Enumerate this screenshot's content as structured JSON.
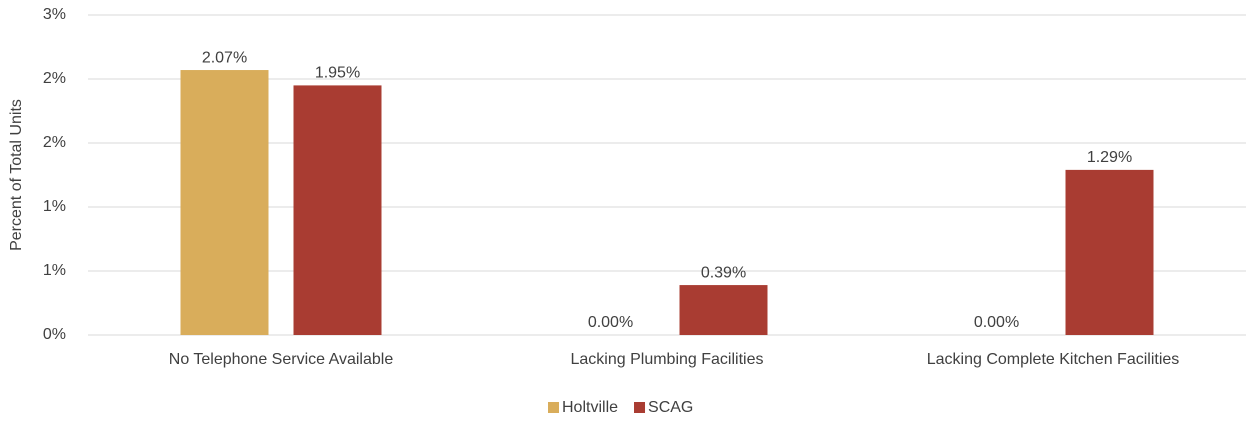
{
  "chart_data": {
    "type": "bar",
    "y_label": "Percent of Total Units",
    "categories": [
      "No Telephone Service Available",
      "Lacking Plumbing Facilities",
      "Lacking Complete Kitchen Facilities"
    ],
    "series": [
      {
        "name": "Holtville",
        "color": "#d9ad5b",
        "values": [
          2.07,
          0.0,
          0.0
        ],
        "value_labels": [
          "2.07%",
          "0.00%",
          "0.00%"
        ]
      },
      {
        "name": "SCAG",
        "color": "#a93c32",
        "values": [
          1.95,
          0.39,
          1.29
        ],
        "value_labels": [
          "1.95%",
          "0.39%",
          "1.29%"
        ]
      }
    ],
    "ylim": [
      0,
      2.5
    ],
    "yticks": [
      {
        "value": 0,
        "label": "0%"
      },
      {
        "value": 0.5,
        "label": "1%"
      },
      {
        "value": 1,
        "label": "1%"
      },
      {
        "value": 1.5,
        "label": "2%"
      },
      {
        "value": 2,
        "label": "2%"
      },
      {
        "value": 2.5,
        "label": "3%"
      }
    ],
    "grid": true,
    "legend": "bottom"
  }
}
